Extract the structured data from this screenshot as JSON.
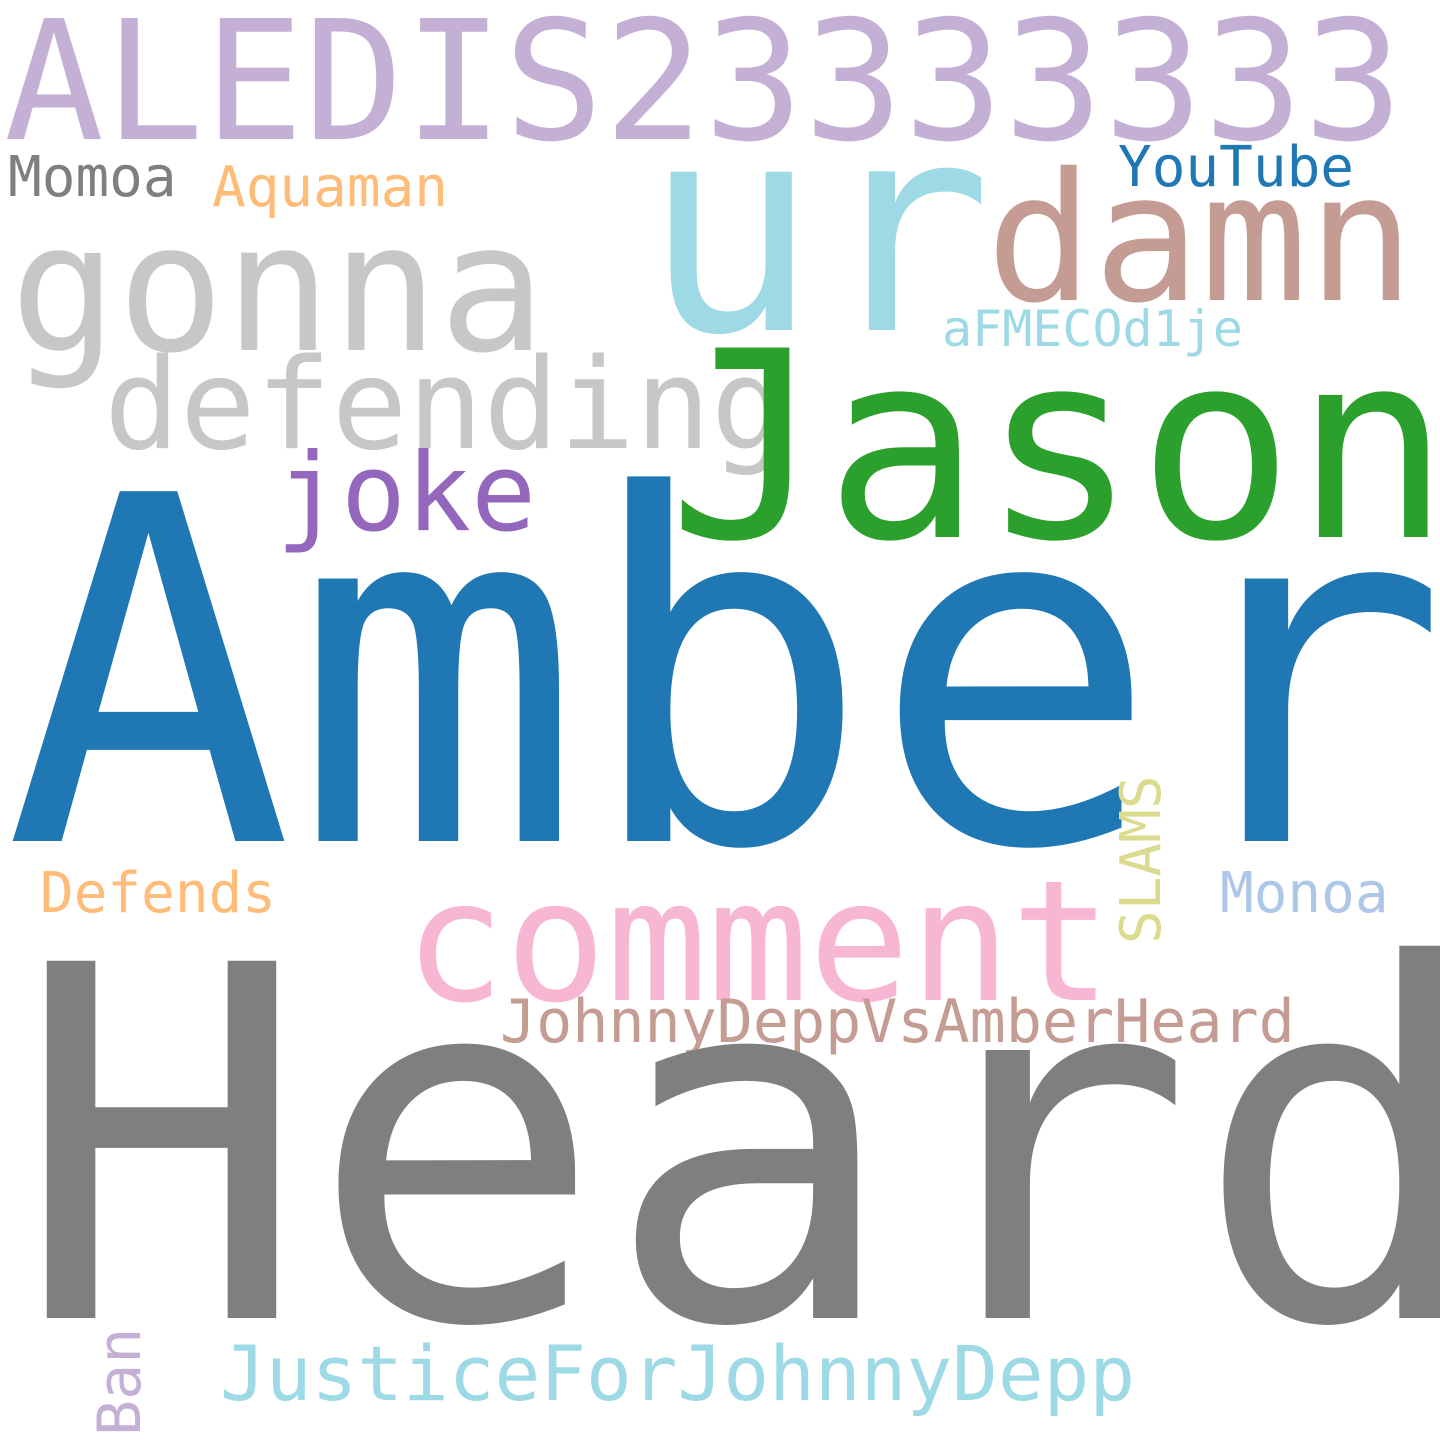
{
  "words": [
    {
      "id": "aledis",
      "text": "ALEDIS23333333",
      "color": "#c5b0d5",
      "orientation": "horizontal"
    },
    {
      "id": "ur",
      "text": "ur",
      "color": "#9edae5",
      "orientation": "horizontal"
    },
    {
      "id": "damn",
      "text": "damn",
      "color": "#c49c94",
      "orientation": "horizontal"
    },
    {
      "id": "youtube",
      "text": "YouTube",
      "color": "#1f77b4",
      "orientation": "horizontal"
    },
    {
      "id": "momoa",
      "text": "Momoa",
      "color": "#7f7f7f",
      "orientation": "horizontal"
    },
    {
      "id": "aquaman",
      "text": "Aquaman",
      "color": "#ffbb78",
      "orientation": "horizontal"
    },
    {
      "id": "gonna",
      "text": "gonna",
      "color": "#c7c7c7",
      "orientation": "horizontal"
    },
    {
      "id": "afmec",
      "text": "aFMECOd1je",
      "color": "#9edae5",
      "orientation": "horizontal"
    },
    {
      "id": "defending",
      "text": "defending",
      "color": "#c7c7c7",
      "orientation": "horizontal"
    },
    {
      "id": "jason",
      "text": "Jason",
      "color": "#2ca02c",
      "orientation": "horizontal"
    },
    {
      "id": "joke",
      "text": "joke",
      "color": "#9467bd",
      "orientation": "horizontal"
    },
    {
      "id": "amber",
      "text": "Amber",
      "color": "#1f77b4",
      "orientation": "horizontal"
    },
    {
      "id": "slams",
      "text": "SLAMS",
      "color": "#dbdb8d",
      "orientation": "vertical"
    },
    {
      "id": "defends",
      "text": "Defends",
      "color": "#ffbb78",
      "orientation": "horizontal"
    },
    {
      "id": "monoa",
      "text": "Monoa",
      "color": "#aec7e8",
      "orientation": "horizontal"
    },
    {
      "id": "comment",
      "text": "comment",
      "color": "#f7b6d2",
      "orientation": "horizontal"
    },
    {
      "id": "jdvah",
      "text": "JohnnyDeppVsAmberHeard",
      "color": "#c49c94",
      "orientation": "horizontal"
    },
    {
      "id": "heard",
      "text": "Heard",
      "color": "#7f7f7f",
      "orientation": "horizontal"
    },
    {
      "id": "justice",
      "text": "JusticeForJohnnyDepp",
      "color": "#9edae5",
      "orientation": "horizontal"
    },
    {
      "id": "ban",
      "text": "Ban",
      "color": "#c5b0d5",
      "orientation": "vertical"
    }
  ]
}
